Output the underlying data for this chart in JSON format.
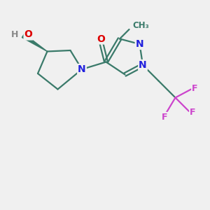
{
  "bg_color": "#f0f0f0",
  "bond_color": "#3a7a6a",
  "N_color": "#2020dd",
  "O_color": "#dd0000",
  "F_color": "#cc44cc",
  "H_color": "#888888",
  "bond_lw": 1.6,
  "fig_size": [
    3.0,
    3.0
  ],
  "dpi": 100,
  "xlim": [
    0,
    10
  ],
  "ylim": [
    0,
    10
  ]
}
